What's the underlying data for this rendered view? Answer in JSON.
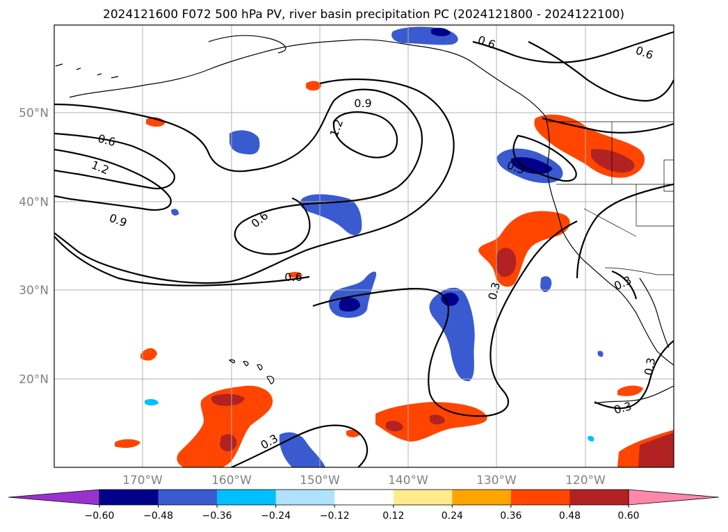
{
  "title": "2024121600 F072 500 hPa PV, river basin precipitation PC (2024121800 - 2024122100)",
  "map": {
    "lat_labels": [
      "50°N",
      "40°N",
      "30°N",
      "20°N"
    ],
    "lon_labels": [
      "170°W",
      "160°W",
      "150°W",
      "140°W",
      "130°W",
      "120°W"
    ],
    "contour_labels": [
      "0.6",
      "1.2",
      "0.9",
      "0.9",
      "1.2",
      "0.6",
      "0.6",
      "0.3",
      "0.3",
      "0.3",
      "0.3",
      "0.6",
      "0.6",
      "0.3",
      "0.3"
    ]
  },
  "colorbar": {
    "ticks": [
      "−0.60",
      "−0.48",
      "−0.36",
      "−0.24",
      "−0.12",
      "0.12",
      "0.24",
      "0.36",
      "0.48",
      "0.60"
    ],
    "colors": [
      "#9932cc",
      "#00008b",
      "#3a5bcf",
      "#00bfff",
      "#b0e2ff",
      "#ffffff",
      "#ffeb8c",
      "#ffa500",
      "#ff4500",
      "#b22222",
      "#ff88aa"
    ]
  }
}
